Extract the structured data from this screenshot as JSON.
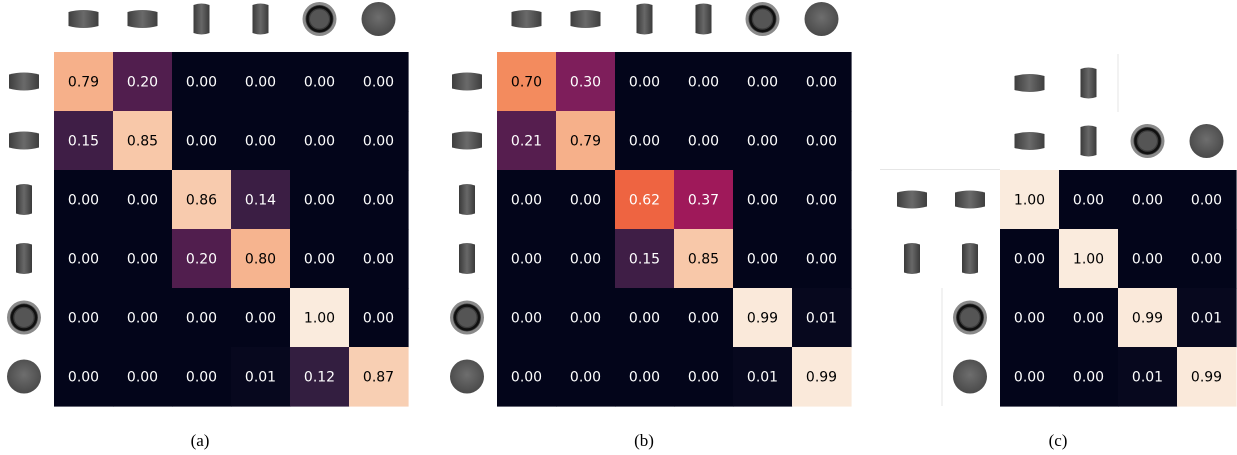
{
  "chart_data": [
    {
      "type": "heatmap",
      "caption": "(a)",
      "row_icons": [
        "flat-cylinder-icon",
        "flat-cylinder-icon",
        "upright-cylinder-icon",
        "upright-cylinder-icon",
        "ring-disk-icon",
        "solid-disk-icon"
      ],
      "col_icons": [
        "flat-cylinder-icon",
        "flat-cylinder-icon",
        "upright-cylinder-icon",
        "upright-cylinder-icon",
        "ring-disk-icon",
        "solid-disk-icon"
      ],
      "values": [
        [
          0.79,
          0.2,
          0.0,
          0.0,
          0.0,
          0.0
        ],
        [
          0.15,
          0.85,
          0.0,
          0.0,
          0.0,
          0.0
        ],
        [
          0.0,
          0.0,
          0.86,
          0.14,
          0.0,
          0.0
        ],
        [
          0.0,
          0.0,
          0.2,
          0.8,
          0.0,
          0.0
        ],
        [
          0.0,
          0.0,
          0.0,
          0.0,
          1.0,
          0.0
        ],
        [
          0.0,
          0.0,
          0.0,
          0.01,
          0.12,
          0.87
        ]
      ],
      "labels": [
        [
          "0.79",
          "0.20",
          "0.00",
          "0.00",
          "0.00",
          "0.00"
        ],
        [
          "0.15",
          "0.85",
          "0.00",
          "0.00",
          "0.00",
          "0.00"
        ],
        [
          "0.00",
          "0.00",
          "0.86",
          "0.14",
          "0.00",
          "0.00"
        ],
        [
          "0.00",
          "0.00",
          "0.20",
          "0.80",
          "0.00",
          "0.00"
        ],
        [
          "0.00",
          "0.00",
          "0.00",
          "0.00",
          "1.00",
          "0.00"
        ],
        [
          "0.00",
          "0.00",
          "0.00",
          "0.01",
          "0.12",
          "0.87"
        ]
      ],
      "value_range": [
        0,
        1
      ],
      "colormap": "rocket"
    },
    {
      "type": "heatmap",
      "caption": "(b)",
      "row_icons": [
        "flat-cylinder-icon",
        "flat-cylinder-icon",
        "upright-cylinder-icon",
        "upright-cylinder-icon",
        "ring-disk-icon",
        "solid-disk-icon"
      ],
      "col_icons": [
        "flat-cylinder-icon",
        "flat-cylinder-icon",
        "upright-cylinder-icon",
        "upright-cylinder-icon",
        "ring-disk-icon",
        "solid-disk-icon"
      ],
      "values": [
        [
          0.7,
          0.3,
          0.0,
          0.0,
          0.0,
          0.0
        ],
        [
          0.21,
          0.79,
          0.0,
          0.0,
          0.0,
          0.0
        ],
        [
          0.0,
          0.0,
          0.62,
          0.37,
          0.0,
          0.0
        ],
        [
          0.0,
          0.0,
          0.15,
          0.85,
          0.0,
          0.0
        ],
        [
          0.0,
          0.0,
          0.0,
          0.0,
          0.99,
          0.01
        ],
        [
          0.0,
          0.0,
          0.0,
          0.0,
          0.01,
          0.99
        ]
      ],
      "labels": [
        [
          "0.70",
          "0.30",
          "0.00",
          "0.00",
          "0.00",
          "0.00"
        ],
        [
          "0.21",
          "0.79",
          "0.00",
          "0.00",
          "0.00",
          "0.00"
        ],
        [
          "0.00",
          "0.00",
          "0.62",
          "0.37",
          "0.00",
          "0.00"
        ],
        [
          "0.00",
          "0.00",
          "0.15",
          "0.85",
          "0.00",
          "0.00"
        ],
        [
          "0.00",
          "0.00",
          "0.00",
          "0.00",
          "0.99",
          "0.01"
        ],
        [
          "0.00",
          "0.00",
          "0.00",
          "0.00",
          "0.01",
          "0.99"
        ]
      ],
      "value_range": [
        0,
        1
      ],
      "colormap": "rocket"
    },
    {
      "type": "heatmap",
      "caption": "(c)",
      "row_icon_groups": [
        [
          "flat-cylinder-icon",
          "flat-cylinder-icon"
        ],
        [
          "upright-cylinder-icon",
          "upright-cylinder-icon"
        ],
        [
          "ring-disk-icon"
        ],
        [
          "solid-disk-icon"
        ]
      ],
      "col_icon_groups": [
        [
          "flat-cylinder-icon",
          "flat-cylinder-icon"
        ],
        [
          "upright-cylinder-icon",
          "upright-cylinder-icon"
        ],
        [
          "ring-disk-icon"
        ],
        [
          "solid-disk-icon"
        ]
      ],
      "values": [
        [
          1.0,
          0.0,
          0.0,
          0.0
        ],
        [
          0.0,
          1.0,
          0.0,
          0.0
        ],
        [
          0.0,
          0.0,
          0.99,
          0.01
        ],
        [
          0.0,
          0.0,
          0.01,
          0.99
        ]
      ],
      "labels": [
        [
          "1.00",
          "0.00",
          "0.00",
          "0.00"
        ],
        [
          "0.00",
          "1.00",
          "0.00",
          "0.00"
        ],
        [
          "0.00",
          "0.00",
          "0.99",
          "0.01"
        ],
        [
          "0.00",
          "0.00",
          "0.01",
          "0.99"
        ]
      ],
      "value_range": [
        0,
        1
      ],
      "colormap": "rocket"
    }
  ],
  "colors": {
    "cmap_stops": [
      "#03051a",
      "#2c1e3d",
      "#511e4e",
      "#7e1e5b",
      "#ad1759",
      "#d72d4b",
      "#ed5a3a",
      "#f38b5e",
      "#f6b48f",
      "#f9dbc2",
      "#faebdd"
    ],
    "text_dark": "#000000",
    "text_light": "#ffffff",
    "icon_fill": "#505050",
    "icon_light": "#7a7a7a"
  }
}
